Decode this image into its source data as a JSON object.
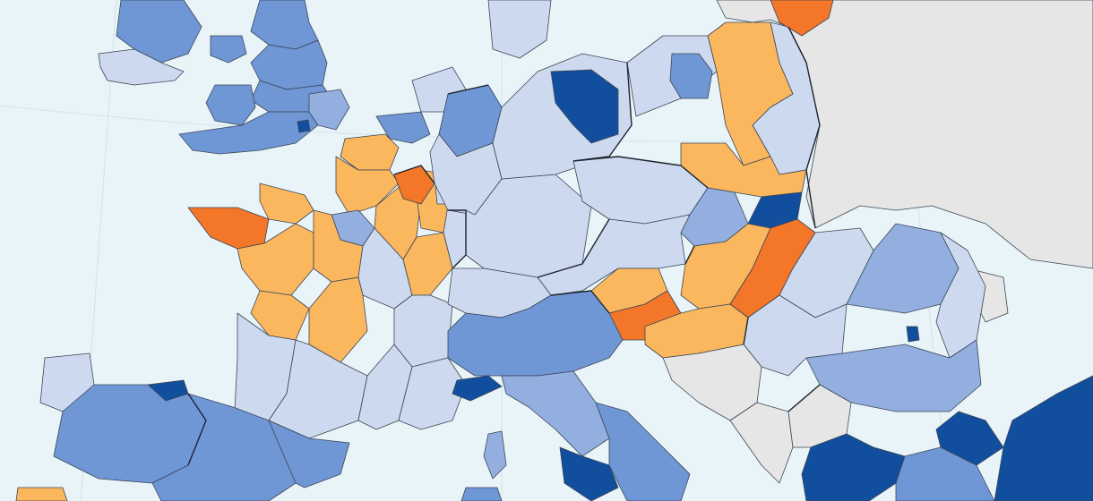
{
  "palette": {
    "sea": "#e8f4f8",
    "non_member": "#e6e6e6",
    "very_light_blue": "#cdd9ef",
    "light_blue": "#92afe0",
    "mid_blue": "#6f97d6",
    "dark_blue": "#124e9e",
    "light_orange": "#fbb75e",
    "dark_orange": "#f37629",
    "border": "#3b4555"
  },
  "regions": [
    {
      "name": "scotland-north",
      "cls": "mid_blue"
    },
    {
      "name": "scotland-south",
      "cls": "mid_blue"
    },
    {
      "name": "ireland",
      "cls": "very_light_blue"
    },
    {
      "name": "northern-ireland",
      "cls": "mid_blue"
    },
    {
      "name": "england-north",
      "cls": "mid_blue"
    },
    {
      "name": "england-midlands",
      "cls": "mid_blue"
    },
    {
      "name": "wales",
      "cls": "mid_blue"
    },
    {
      "name": "england-south",
      "cls": "mid_blue"
    },
    {
      "name": "england-east",
      "cls": "light_blue"
    },
    {
      "name": "london",
      "cls": "dark_blue"
    },
    {
      "name": "brittany",
      "cls": "dark_orange"
    },
    {
      "name": "normandy",
      "cls": "light_orange"
    },
    {
      "name": "nord-pas-de-calais",
      "cls": "light_orange"
    },
    {
      "name": "picardie",
      "cls": "light_orange"
    },
    {
      "name": "ile-de-france",
      "cls": "light_blue"
    },
    {
      "name": "champagne",
      "cls": "light_orange"
    },
    {
      "name": "lorraine",
      "cls": "light_orange"
    },
    {
      "name": "alsace",
      "cls": "very_light_blue"
    },
    {
      "name": "pays-de-la-loire",
      "cls": "light_orange"
    },
    {
      "name": "centre",
      "cls": "light_orange"
    },
    {
      "name": "bourgogne",
      "cls": "very_light_blue"
    },
    {
      "name": "franche-comte",
      "cls": "light_orange"
    },
    {
      "name": "poitou-charentes",
      "cls": "light_orange"
    },
    {
      "name": "limousin",
      "cls": "light_orange"
    },
    {
      "name": "aquitaine",
      "cls": "very_light_blue"
    },
    {
      "name": "midi-pyrenees",
      "cls": "very_light_blue"
    },
    {
      "name": "rhone-alpes",
      "cls": "very_light_blue"
    },
    {
      "name": "languedoc",
      "cls": "very_light_blue"
    },
    {
      "name": "provence",
      "cls": "very_light_blue"
    },
    {
      "name": "belgium-flanders",
      "cls": "mid_blue"
    },
    {
      "name": "belgium-wallonia",
      "cls": "dark_orange"
    },
    {
      "name": "luxembourg",
      "cls": "very_light_blue"
    },
    {
      "name": "netherlands",
      "cls": "very_light_blue"
    },
    {
      "name": "germany-northwest",
      "cls": "mid_blue"
    },
    {
      "name": "germany-west",
      "cls": "very_light_blue"
    },
    {
      "name": "germany-south",
      "cls": "very_light_blue"
    },
    {
      "name": "germany-east",
      "cls": "very_light_blue"
    },
    {
      "name": "berlin-brandenburg",
      "cls": "dark_blue"
    },
    {
      "name": "denmark",
      "cls": "very_light_blue"
    },
    {
      "name": "poland-west",
      "cls": "very_light_blue"
    },
    {
      "name": "poland-north",
      "cls": "light_orange"
    },
    {
      "name": "poland-central",
      "cls": "mid_blue"
    },
    {
      "name": "poland-east",
      "cls": "very_light_blue"
    },
    {
      "name": "poland-southeast",
      "cls": "light_orange"
    },
    {
      "name": "lithuania",
      "cls": "dark_orange"
    },
    {
      "name": "czechia",
      "cls": "very_light_blue"
    },
    {
      "name": "slovakia",
      "cls": "light_blue"
    },
    {
      "name": "slovakia-east",
      "cls": "dark_blue"
    },
    {
      "name": "austria",
      "cls": "very_light_blue"
    },
    {
      "name": "carinthia",
      "cls": "light_orange"
    },
    {
      "name": "switzerland",
      "cls": "very_light_blue"
    },
    {
      "name": "slovenia",
      "cls": "dark_orange"
    },
    {
      "name": "hungary-west",
      "cls": "light_orange"
    },
    {
      "name": "hungary-east",
      "cls": "dark_orange"
    },
    {
      "name": "croatia",
      "cls": "light_orange"
    },
    {
      "name": "romania-west",
      "cls": "very_light_blue"
    },
    {
      "name": "romania-center",
      "cls": "light_blue"
    },
    {
      "name": "romania-east",
      "cls": "very_light_blue"
    },
    {
      "name": "bucharest",
      "cls": "dark_blue"
    },
    {
      "name": "bulgaria",
      "cls": "light_blue"
    },
    {
      "name": "serbia",
      "cls": "very_light_blue"
    },
    {
      "name": "bosnia",
      "cls": "non_member"
    },
    {
      "name": "montenegro-albania",
      "cls": "non_member"
    },
    {
      "name": "macedonia",
      "cls": "non_member"
    },
    {
      "name": "italy-north",
      "cls": "mid_blue"
    },
    {
      "name": "liguria",
      "cls": "dark_blue"
    },
    {
      "name": "italy-central",
      "cls": "light_blue"
    },
    {
      "name": "italy-south",
      "cls": "mid_blue"
    },
    {
      "name": "campania",
      "cls": "dark_blue"
    },
    {
      "name": "corsica",
      "cls": "light_blue"
    },
    {
      "name": "sardinia",
      "cls": "mid_blue"
    },
    {
      "name": "spain-north",
      "cls": "mid_blue"
    },
    {
      "name": "basque",
      "cls": "dark_blue"
    },
    {
      "name": "spain-central",
      "cls": "mid_blue"
    },
    {
      "name": "catalonia",
      "cls": "mid_blue"
    },
    {
      "name": "galicia-asturias",
      "cls": "very_light_blue"
    },
    {
      "name": "portugal-north",
      "cls": "light_orange"
    },
    {
      "name": "greece-north",
      "cls": "dark_blue"
    },
    {
      "name": "greece-central",
      "cls": "mid_blue"
    },
    {
      "name": "turkey-thrace",
      "cls": "dark_blue"
    },
    {
      "name": "turkey-anatolia",
      "cls": "dark_blue"
    },
    {
      "name": "belarus-ukraine",
      "cls": "non_member"
    },
    {
      "name": "russia-kaliningrad-east",
      "cls": "non_member"
    },
    {
      "name": "moldova",
      "cls": "non_member"
    }
  ]
}
